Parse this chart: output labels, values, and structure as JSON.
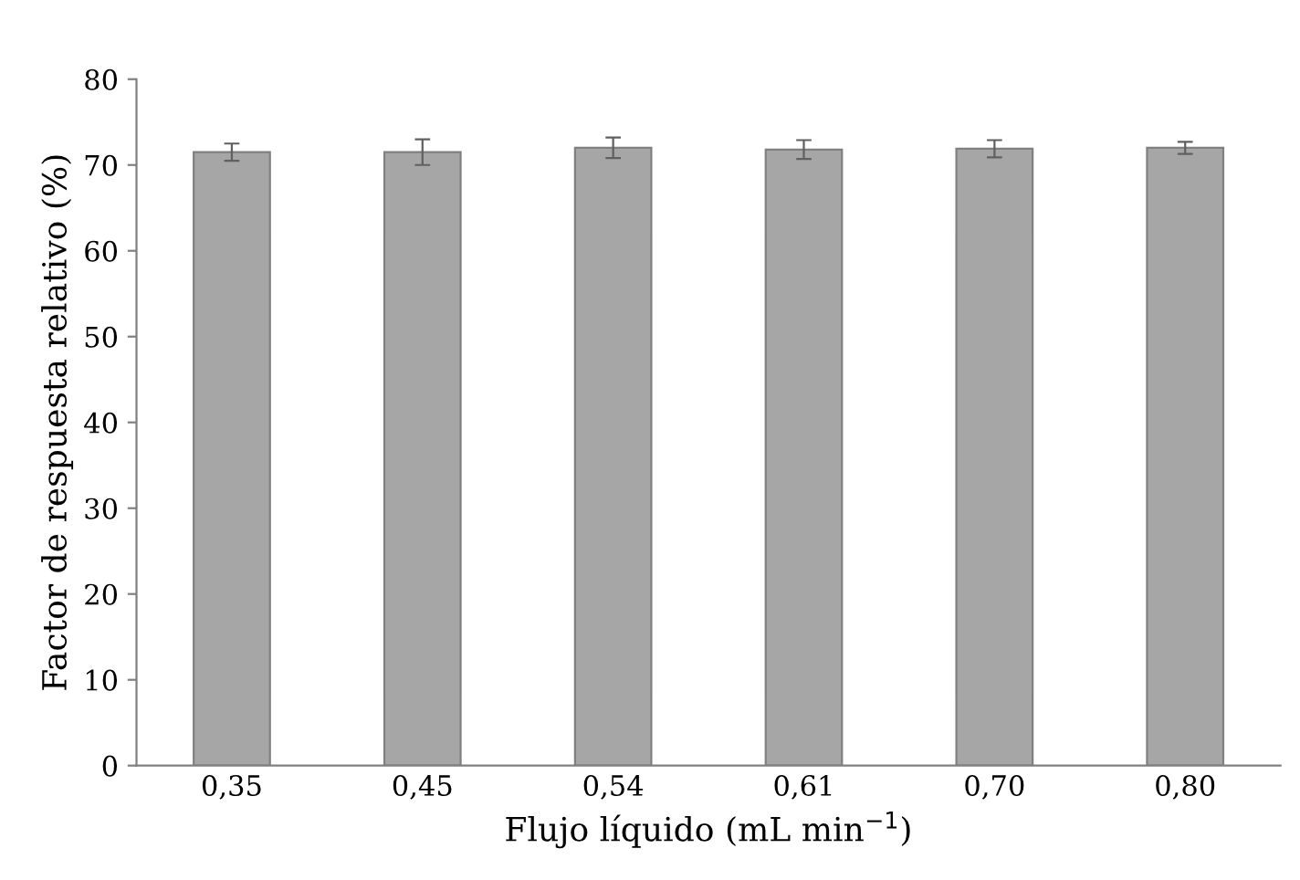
{
  "chart_data": {
    "type": "bar",
    "xlabel": "Flujo líquido (mL min$^{−1}$)",
    "ylabel": "Factor de respuesta relativo (%)",
    "categories": [
      "0,35",
      "0,45",
      "0,54",
      "0,61",
      "0,70",
      "0,80"
    ],
    "values": [
      71.5,
      71.5,
      72.0,
      71.8,
      71.9,
      72.0
    ],
    "errors": [
      1.0,
      1.5,
      1.2,
      1.1,
      1.0,
      0.7
    ],
    "color": "#a6a6a6",
    "ylim": [
      0,
      80
    ],
    "yticks": [
      0,
      10,
      20,
      30,
      40,
      50,
      60,
      70,
      80
    ],
    "grid": false,
    "legend": false
  }
}
